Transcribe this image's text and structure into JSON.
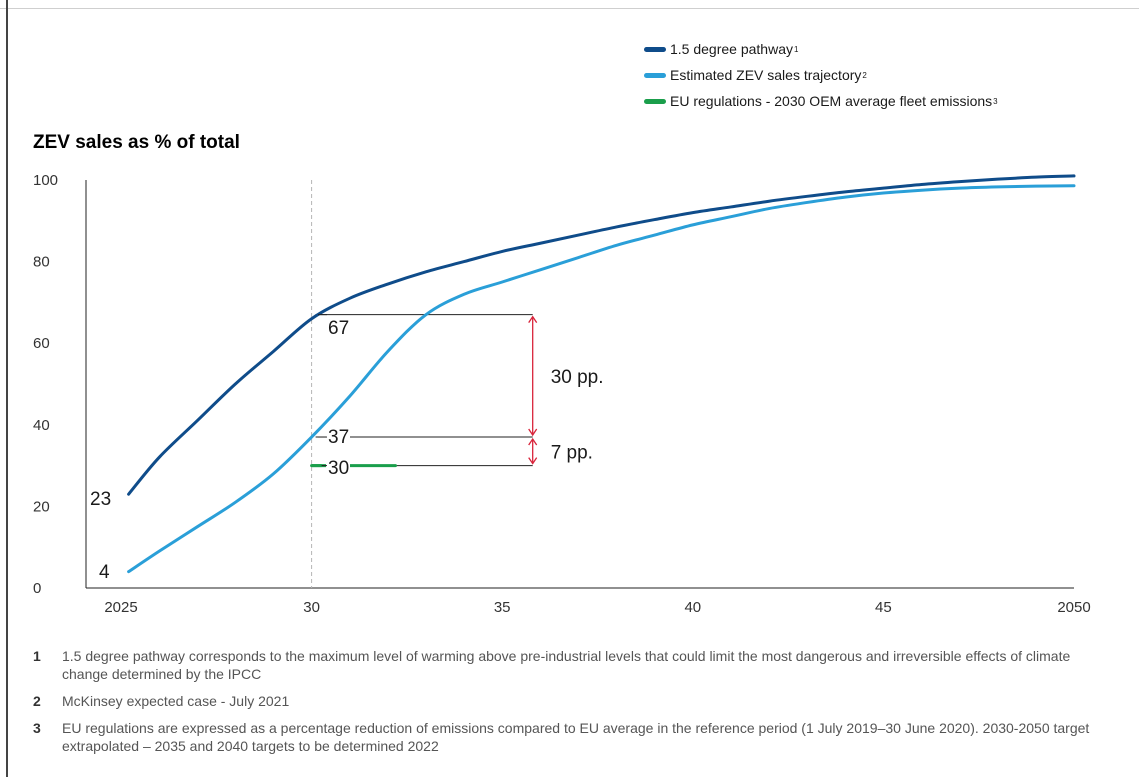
{
  "legend": [
    {
      "label": "1.5 degree pathway",
      "sup": "1",
      "color": "#0f4c8a"
    },
    {
      "label": "Estimated ZEV sales trajectory",
      "sup": "2",
      "color": "#2a9fd8"
    },
    {
      "label": "EU regulations - 2030 OEM average fleet emissions",
      "sup": "3",
      "color": "#1a9e4b"
    }
  ],
  "chart_data": {
    "type": "line",
    "title": "ZEV sales as % of total",
    "xlabel": "",
    "ylabel": "",
    "xlim": [
      2025,
      2050
    ],
    "ylim": [
      0,
      100
    ],
    "x_ticks": [
      2025,
      2030,
      2035,
      2040,
      2045,
      2050
    ],
    "x_tick_labels": [
      "2025",
      "30",
      "35",
      "40",
      "45",
      "2050"
    ],
    "y_ticks": [
      0,
      20,
      40,
      60,
      80,
      100
    ],
    "y_tick_labels": [
      "0",
      "20",
      "40",
      "60",
      "80",
      "100"
    ],
    "grid": false,
    "legend_placement": "top-right",
    "series": [
      {
        "name": "1.5 degree pathway",
        "color": "#0f4c8a",
        "x": [
          2025.2,
          2026,
          2027,
          2028,
          2029,
          2030,
          2031,
          2032,
          2033,
          2034,
          2035,
          2036,
          2037,
          2038,
          2039,
          2040,
          2041,
          2042,
          2043,
          2044,
          2045,
          2046,
          2047,
          2048,
          2049,
          2050
        ],
        "y": [
          23,
          32,
          41,
          50,
          58,
          66,
          71,
          74.5,
          77.5,
          80,
          82.5,
          84.5,
          86.5,
          88.5,
          90.3,
          92,
          93.4,
          94.8,
          96,
          97.1,
          98,
          98.9,
          99.6,
          100.2,
          100.7,
          101
        ]
      },
      {
        "name": "Estimated ZEV sales trajectory",
        "color": "#2a9fd8",
        "x": [
          2025.2,
          2026,
          2027,
          2028,
          2029,
          2030,
          2031,
          2032,
          2033,
          2034,
          2035,
          2036,
          2037,
          2038,
          2039,
          2040,
          2041,
          2042,
          2043,
          2044,
          2045,
          2046,
          2047,
          2048,
          2049,
          2050
        ],
        "y": [
          4,
          9,
          15,
          21,
          28,
          37,
          47,
          58,
          67,
          72,
          75,
          78,
          81,
          84,
          86.5,
          89,
          91,
          93,
          94.5,
          95.8,
          96.8,
          97.5,
          98,
          98.3,
          98.5,
          98.6
        ]
      },
      {
        "name": "EU regulations - 2030 OEM average fleet emissions",
        "color": "#1a9e4b",
        "x": [
          2030,
          2032.2
        ],
        "y": [
          30,
          30
        ]
      }
    ],
    "point_labels": [
      {
        "x": 2025.2,
        "y": 23,
        "text": "23"
      },
      {
        "x": 2025.2,
        "y": 4,
        "text": "4"
      },
      {
        "x": 2030,
        "y": 67,
        "text": "67"
      },
      {
        "x": 2030,
        "y": 37,
        "text": "37"
      },
      {
        "x": 2030,
        "y": 30,
        "text": "30"
      }
    ],
    "reference_line": {
      "x": 2030
    },
    "annotations": [
      {
        "from": 67,
        "to": 37,
        "x": 2035.8,
        "text": "30 pp."
      },
      {
        "from": 37,
        "to": 30,
        "x": 2035.8,
        "text": "7 pp."
      }
    ]
  },
  "footnotes": [
    {
      "num": "1",
      "text": "1.5 degree pathway corresponds to the maximum level of warming above pre-industrial levels that could limit the most dangerous and irreversible effects of climate change determined by the IPCC"
    },
    {
      "num": "2",
      "text": "McKinsey expected case - July 2021"
    },
    {
      "num": "3",
      "text": "EU regulations are expressed as a percentage reduction of emissions compared to EU average in the reference period (1 July 2019–30 June 2020). 2030-2050 target extrapolated – 2035 and 2040 targets to be determined 2022"
    }
  ]
}
